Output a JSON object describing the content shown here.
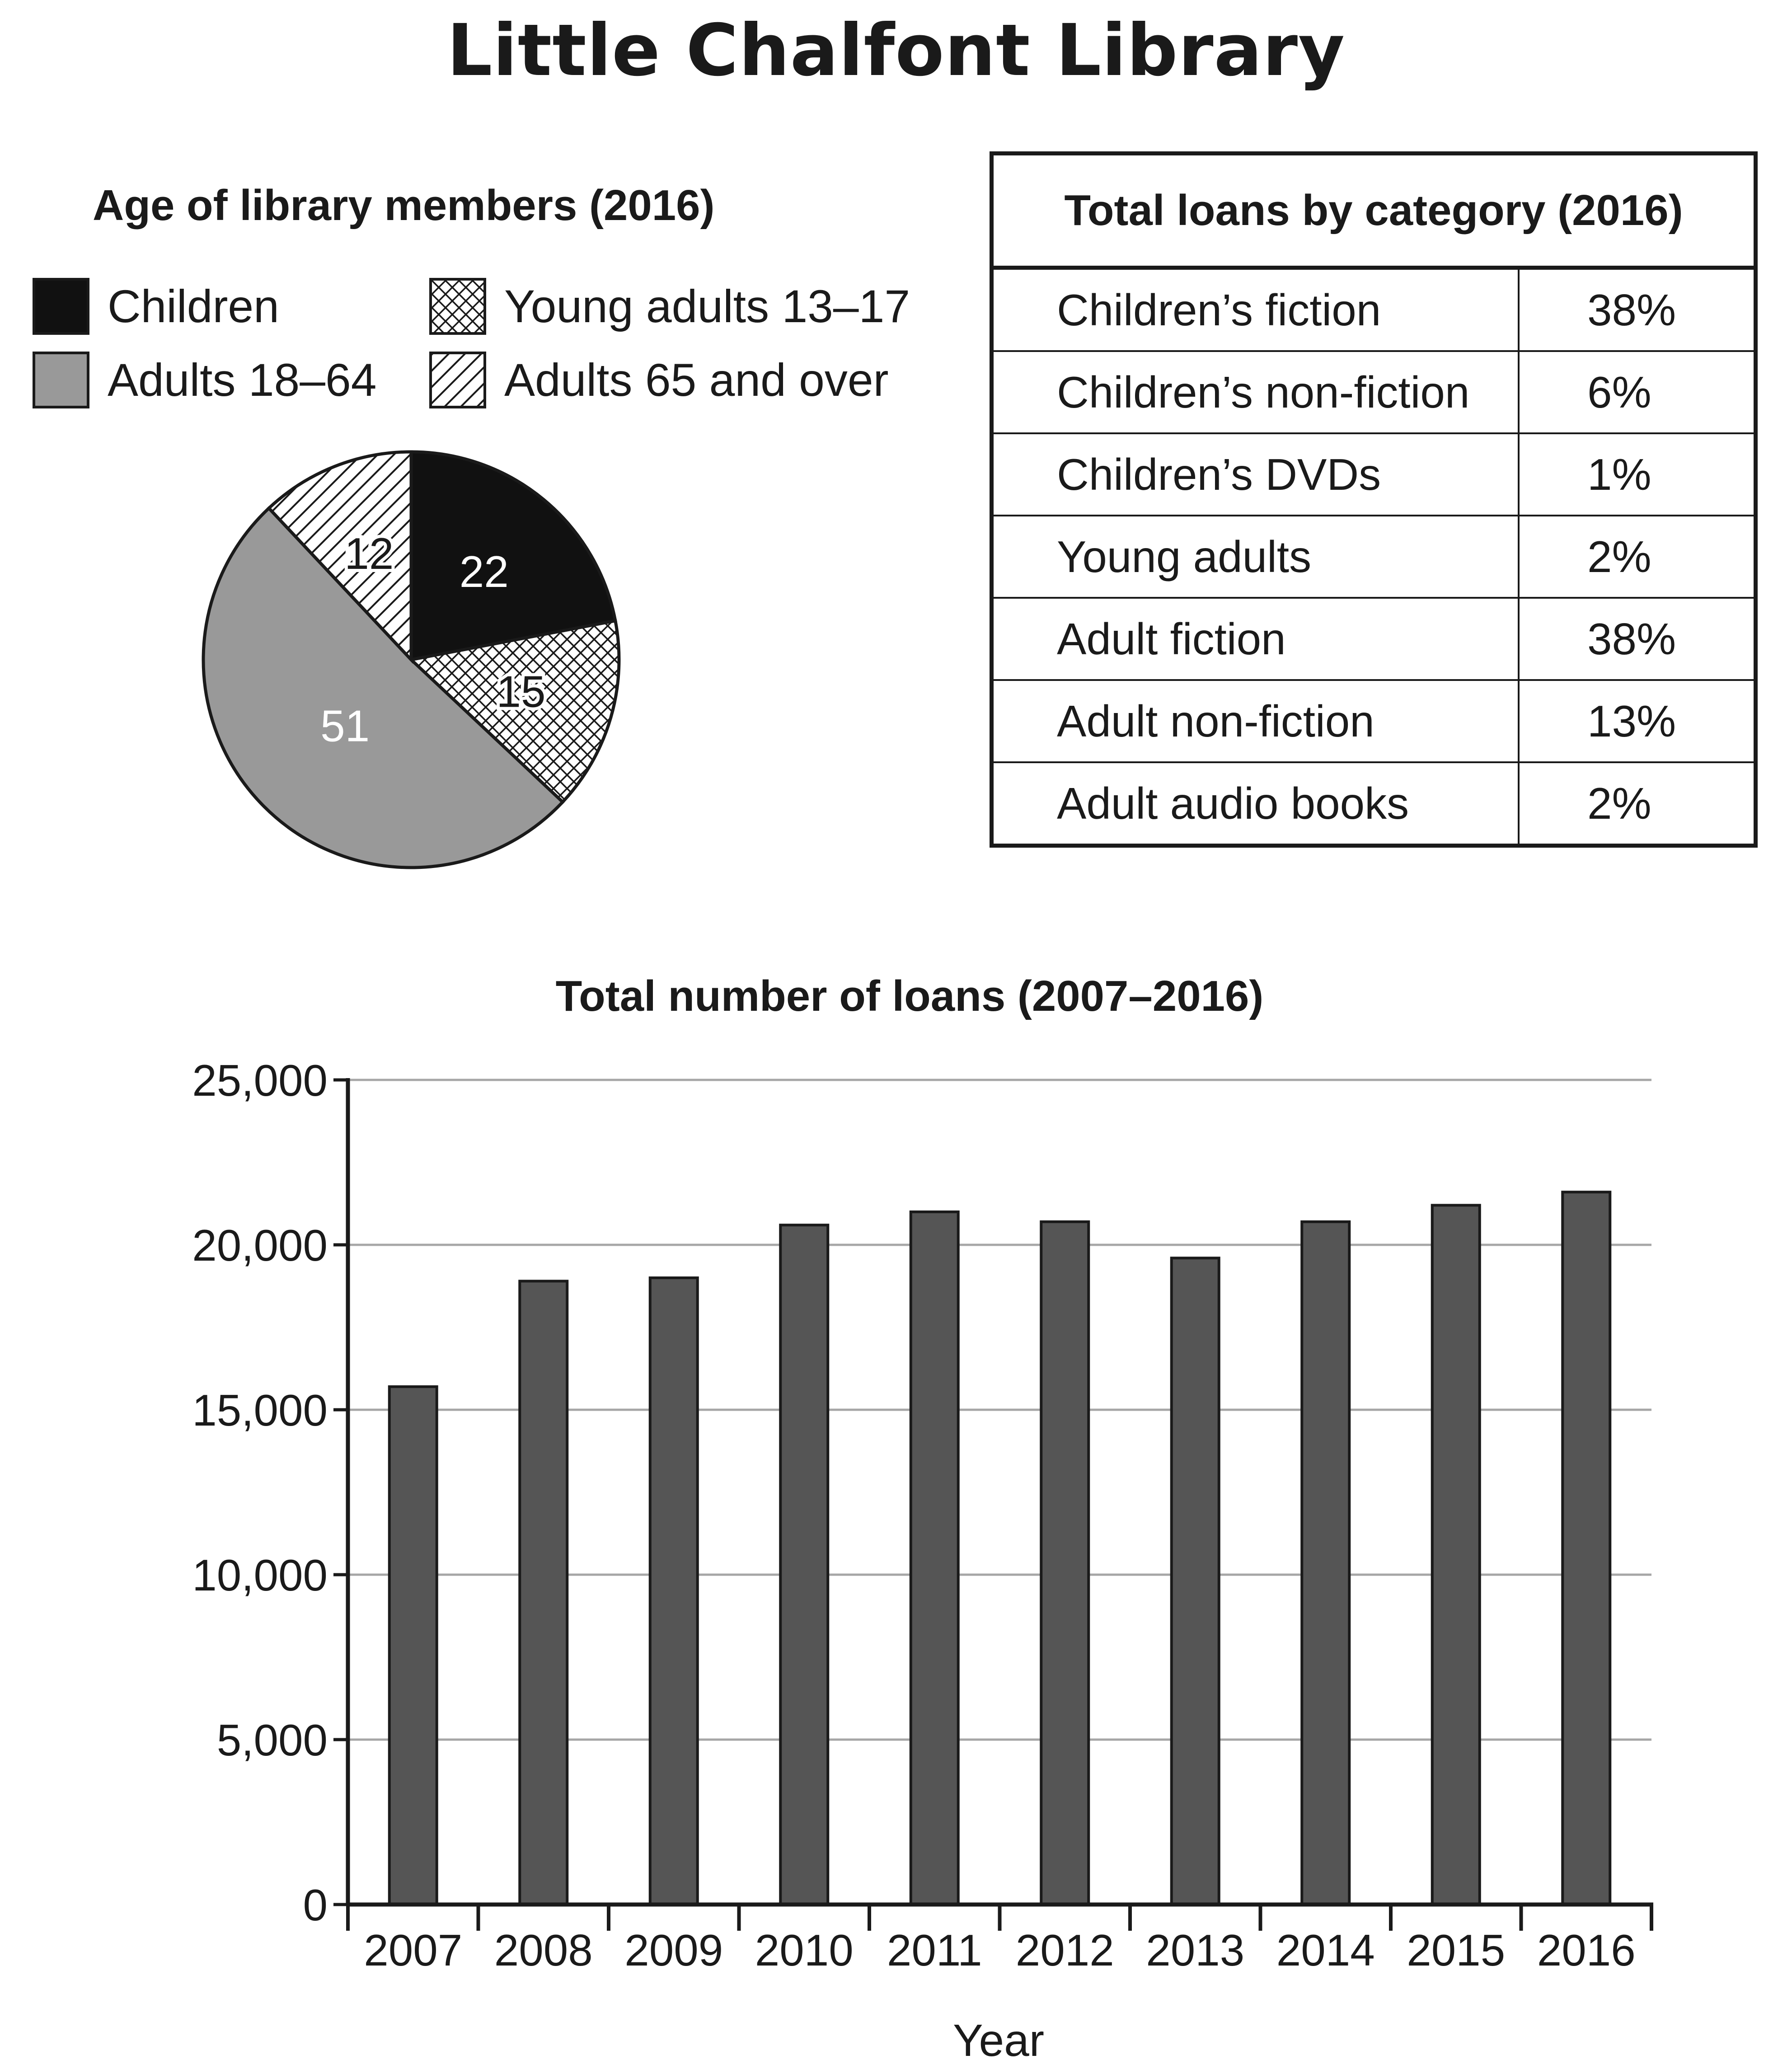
{
  "title": "Little Chalfont Library",
  "pie": {
    "title": "Age of library members (2016)",
    "legend": [
      {
        "label": "Children",
        "pattern": "solid-black"
      },
      {
        "label": "Young adults 13–17",
        "pattern": "crosshatch"
      },
      {
        "label": "Adults 18–64",
        "pattern": "solid-grey"
      },
      {
        "label": "Adults 65 and over",
        "pattern": "diagonal-hatch"
      }
    ]
  },
  "table": {
    "title": "Total loans by category (2016)",
    "rows": [
      {
        "category": "Children’s fiction",
        "value": "38%"
      },
      {
        "category": "Children’s non-fiction",
        "value": "6%"
      },
      {
        "category": "Children’s DVDs",
        "value": "1%"
      },
      {
        "category": "Young adults",
        "value": "2%"
      },
      {
        "category": "Adult fiction",
        "value": "38%"
      },
      {
        "category": "Adult non-fiction",
        "value": "13%"
      },
      {
        "category": "Adult audio books",
        "value": "2%"
      }
    ]
  },
  "colors": {
    "bar": "#555555",
    "adults_18_64": "#999999",
    "children": "#111111",
    "gridline": "#a6a6a6"
  },
  "chart_data": [
    {
      "type": "pie",
      "title": "Age of library members (2016)",
      "slices": [
        {
          "label": "Children",
          "value": 22
        },
        {
          "label": "Young adults 13–17",
          "value": 15
        },
        {
          "label": "Adults 18–64",
          "value": 51
        },
        {
          "label": "Adults 65 and over",
          "value": 12
        }
      ],
      "legend_position": "top"
    },
    {
      "type": "table",
      "title": "Total loans by category (2016)",
      "columns": [
        "",
        ""
      ],
      "rows": [
        [
          "Children’s fiction",
          "38%"
        ],
        [
          "Children’s non-fiction",
          "6%"
        ],
        [
          "Children’s DVDs",
          "1%"
        ],
        [
          "Young adults",
          "2%"
        ],
        [
          "Adult fiction",
          "38%"
        ],
        [
          "Adult non-fiction",
          "13%"
        ],
        [
          "Adult audio books",
          "2%"
        ]
      ]
    },
    {
      "type": "bar",
      "title": "Total number of loans (2007–2016)",
      "xlabel": "Year",
      "ylabel": "",
      "categories": [
        "2007",
        "2008",
        "2009",
        "2010",
        "2011",
        "2012",
        "2013",
        "2014",
        "2015",
        "2016"
      ],
      "values": [
        15700,
        18900,
        19000,
        20600,
        21000,
        20700,
        19600,
        20700,
        21200,
        21600
      ],
      "ylim": [
        0,
        25000
      ],
      "yticks": [
        "0",
        "5,000",
        "10,000",
        "15,000",
        "20,000",
        "25,000"
      ],
      "grid": true
    }
  ]
}
